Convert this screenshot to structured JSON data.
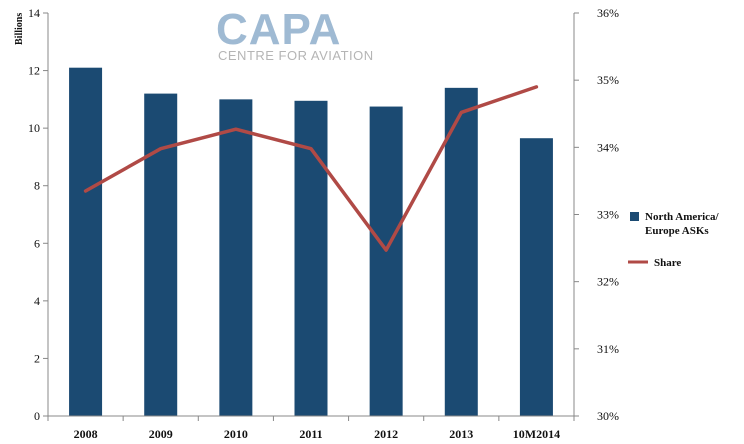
{
  "logo": {
    "main": "CAPA",
    "sub": "CENTRE FOR AVIATION"
  },
  "chart_data": {
    "type": "bar+line",
    "categories": [
      "2008",
      "2009",
      "2010",
      "2011",
      "2012",
      "2013",
      "10M2014"
    ],
    "ylabel": "Billions",
    "ylim": [
      0,
      14
    ],
    "y_ticks": [
      "0",
      "2",
      "4",
      "6",
      "8",
      "10",
      "12",
      "14"
    ],
    "y2lim": [
      30,
      36
    ],
    "y2_ticks": [
      "30%",
      "31%",
      "32%",
      "33%",
      "34%",
      "35%",
      "36%"
    ],
    "grid": false,
    "legend_position": "right",
    "series": [
      {
        "name": "North America/ Europe ASKs",
        "legend_lines": [
          "North America/",
          "Europe ASKs"
        ],
        "type": "bar",
        "axis": "left",
        "color": "#1b4a72",
        "values": [
          12.1,
          11.2,
          11.0,
          10.95,
          10.75,
          11.4,
          9.65
        ]
      },
      {
        "name": "Share",
        "type": "line",
        "axis": "right",
        "color": "#b04a46",
        "values": [
          33.35,
          33.98,
          34.27,
          33.98,
          32.47,
          34.52,
          34.9
        ]
      }
    ]
  }
}
